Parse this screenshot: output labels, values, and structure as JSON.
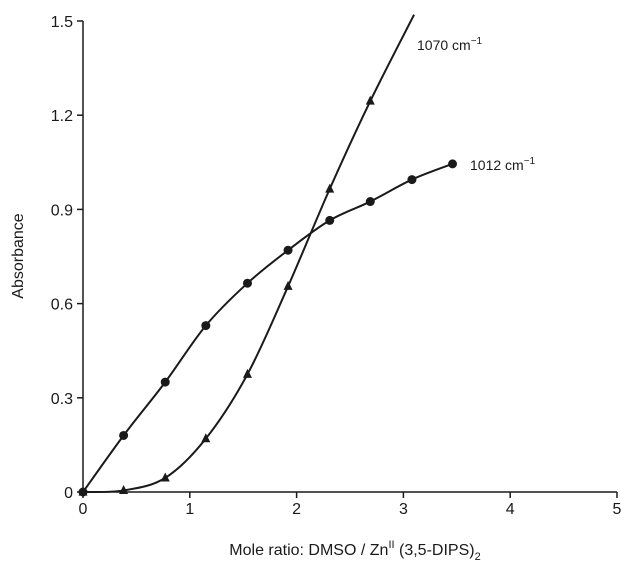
{
  "chart_data": {
    "type": "line",
    "title": "",
    "xlabel": {
      "main": "Mole ratio: DMSO / Zn",
      "superscript": "II",
      "middle": " (3,5-DIPS)",
      "subscript": "2"
    },
    "ylabel": "Absorbance",
    "xlim": [
      0,
      5
    ],
    "ylim": [
      0,
      1.5
    ],
    "x_ticks": [
      "0",
      "1",
      "2",
      "3",
      "4",
      "5"
    ],
    "y_ticks": [
      "0",
      "0.3",
      "0.6",
      "0.9",
      "1.2",
      "1.5"
    ],
    "grid": false,
    "series": [
      {
        "name": "1012 cm",
        "name_superscript": "−1",
        "marker": "circle",
        "color": "#1a1a1a",
        "x": [
          0.0,
          0.38,
          0.77,
          1.15,
          1.54,
          1.92,
          2.31,
          2.69,
          3.08,
          3.46
        ],
        "y": [
          0.0,
          0.18,
          0.35,
          0.53,
          0.665,
          0.77,
          0.865,
          0.925,
          0.995,
          1.045
        ]
      },
      {
        "name": "1070 cm",
        "name_superscript": "−1",
        "marker": "triangle",
        "color": "#1a1a1a",
        "x": [
          0.0,
          0.38,
          0.77,
          1.15,
          1.54,
          1.92,
          2.31,
          2.69
        ],
        "y": [
          0.0,
          0.005,
          0.045,
          0.17,
          0.375,
          0.655,
          0.965,
          1.245
        ],
        "curve_extends_to": [
          3.1,
          1.52
        ]
      }
    ]
  }
}
